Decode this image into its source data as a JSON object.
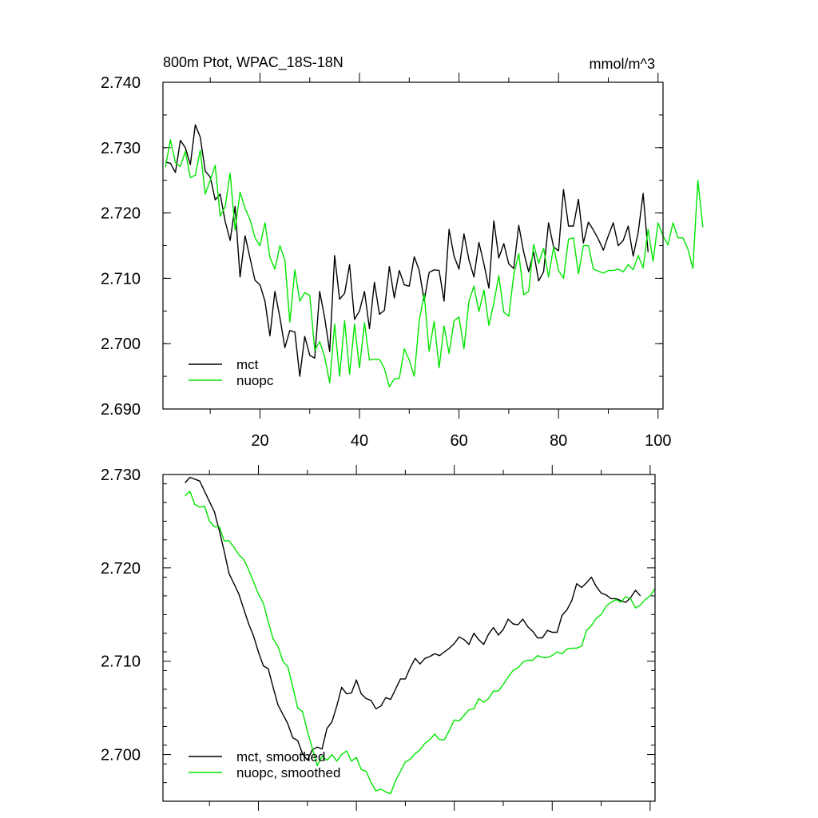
{
  "colors": {
    "mct": "#000000",
    "nuopc": "#00e600",
    "axis": "#000000"
  },
  "chart_data": [
    {
      "type": "line",
      "title": "800m Ptot, WPAC_18S-18N",
      "units_label": "mmol/m^3",
      "xlabel": "",
      "ylabel": "",
      "xlim": [
        0.5,
        101
      ],
      "ylim": [
        2.69,
        2.74
      ],
      "x_ticks": [
        20,
        40,
        60,
        80,
        100
      ],
      "x_tick_labels": [
        "20",
        "40",
        "60",
        "80",
        "100"
      ],
      "y_ticks": [
        2.69,
        2.7,
        2.71,
        2.72,
        2.73,
        2.74
      ],
      "y_tick_labels": [
        "2.690",
        "2.700",
        "2.710",
        "2.720",
        "2.730",
        "2.740"
      ],
      "legend_position": "bottom-left",
      "x_start": 1,
      "series": [
        {
          "name": "mct",
          "color": "#000000",
          "values": [
            2.7278,
            2.7276,
            2.7262,
            2.7311,
            2.73,
            2.7274,
            2.7335,
            2.7316,
            2.7264,
            2.7255,
            2.722,
            2.7229,
            2.7187,
            2.7158,
            2.721,
            2.7102,
            2.7165,
            2.7131,
            2.7097,
            2.709,
            2.7065,
            2.7012,
            2.708,
            2.704,
            2.6994,
            2.702,
            2.7018,
            2.695,
            2.7011,
            2.6982,
            2.6978,
            2.708,
            2.704,
            2.6988,
            2.7135,
            2.7068,
            2.7077,
            2.7121,
            2.7037,
            2.705,
            2.708,
            2.7023,
            2.7094,
            2.7045,
            2.7051,
            2.7118,
            2.707,
            2.7112,
            2.709,
            2.7088,
            2.7133,
            2.7112,
            2.7066,
            2.7109,
            2.7113,
            2.7112,
            2.7065,
            2.7175,
            2.7134,
            2.7114,
            2.7168,
            2.7128,
            2.7102,
            2.7155,
            2.7122,
            2.7085,
            2.7188,
            2.7131,
            2.7153,
            2.7122,
            2.7115,
            2.7181,
            2.714,
            2.711,
            2.714,
            2.7096,
            2.711,
            2.7185,
            2.7148,
            2.7142,
            2.7236,
            2.718,
            2.718,
            2.7221,
            2.7154,
            2.7186,
            2.7174,
            2.716,
            2.7143,
            2.7165,
            2.7185,
            2.715,
            2.7158,
            2.718,
            2.7134,
            2.717,
            2.723,
            2.714
          ]
        },
        {
          "name": "nuopc",
          "color": "#00e600",
          "values": [
            2.727,
            2.7312,
            2.7277,
            2.7271,
            2.7294,
            2.7254,
            2.7258,
            2.7296,
            2.7229,
            2.725,
            2.7273,
            2.7195,
            2.721,
            2.7261,
            2.7174,
            2.7232,
            2.7207,
            2.719,
            2.7162,
            2.715,
            2.7185,
            2.7132,
            2.7114,
            2.715,
            2.7128,
            2.7033,
            2.7113,
            2.7065,
            2.7078,
            2.7074,
            2.699,
            2.7003,
            2.698,
            2.694,
            2.703,
            2.695,
            2.7035,
            2.6953,
            2.703,
            2.6963,
            2.7032,
            2.6975,
            2.6976,
            2.6976,
            2.6962,
            2.6934,
            2.6946,
            2.6947,
            2.6992,
            2.6975,
            2.695,
            2.7035,
            2.7076,
            2.6988,
            2.7034,
            2.6963,
            2.7027,
            2.6985,
            2.7035,
            2.7041,
            2.6992,
            2.7065,
            2.7088,
            2.7049,
            2.7082,
            2.7028,
            2.7062,
            2.7104,
            2.7048,
            2.7042,
            2.7105,
            2.7138,
            2.7075,
            2.708,
            2.7152,
            2.7123,
            2.7146,
            2.7102,
            2.7148,
            2.7112,
            2.71,
            2.716,
            2.7162,
            2.7107,
            2.715,
            2.715,
            2.7114,
            2.7111,
            2.7108,
            2.7112,
            2.7112,
            2.7114,
            2.711,
            2.7121,
            2.7113,
            2.7135,
            2.7116,
            2.7175,
            2.7126,
            2.7185,
            2.7165,
            2.7151,
            2.7185,
            2.7162,
            2.7162,
            2.7145,
            2.7115,
            2.725,
            2.7178
          ]
        }
      ]
    },
    {
      "type": "line",
      "title": "",
      "xlabel": "",
      "ylabel": "",
      "xlim": [
        0.5,
        101
      ],
      "ylim": [
        2.695,
        2.73
      ],
      "x_ticks": [
        20,
        40,
        60,
        80,
        100
      ],
      "x_tick_labels": [],
      "y_ticks": [
        2.7,
        2.71,
        2.72,
        2.73
      ],
      "y_tick_labels": [
        "2.700",
        "2.710",
        "2.720",
        "2.730"
      ],
      "legend_position": "bottom-left",
      "x_start": 5,
      "series": [
        {
          "name": "mct, smoothed",
          "color": "#000000",
          "values": [
            2.7291,
            2.7297,
            2.7295,
            2.7293,
            2.7282,
            2.7271,
            2.726,
            2.724,
            2.7218,
            2.7194,
            2.7183,
            2.7172,
            2.7156,
            2.714,
            2.7127,
            2.711,
            2.7095,
            2.7092,
            2.7072,
            2.7053,
            2.7043,
            2.7033,
            2.7018,
            2.7015,
            2.7001,
            2.6994,
            2.7005,
            2.7008,
            2.7006,
            2.7028,
            2.7035,
            2.7052,
            2.7072,
            2.7065,
            2.7066,
            2.708,
            2.7065,
            2.706,
            2.7058,
            2.7049,
            2.7052,
            2.7061,
            2.7059,
            2.707,
            2.7081,
            2.7081,
            2.7093,
            2.7103,
            2.7097,
            2.7103,
            2.7105,
            2.7108,
            2.7106,
            2.711,
            2.7114,
            2.7119,
            2.7126,
            2.7123,
            2.7118,
            2.713,
            2.7123,
            2.7118,
            2.7129,
            2.7136,
            2.7128,
            2.7134,
            2.7145,
            2.714,
            2.7139,
            2.7145,
            2.7137,
            2.7132,
            2.7125,
            2.7125,
            2.7133,
            2.7131,
            2.7131,
            2.7149,
            2.7155,
            2.7165,
            2.7183,
            2.7179,
            2.7184,
            2.719,
            2.718,
            2.7173,
            2.7171,
            2.7167,
            2.7167,
            2.7165,
            2.7163,
            2.7168,
            2.7176,
            2.717
          ]
        },
        {
          "name": "nuopc, smoothed",
          "color": "#00e600",
          "values": [
            2.7277,
            2.7282,
            2.7268,
            2.7265,
            2.7266,
            2.725,
            2.7244,
            2.7244,
            2.7229,
            2.7229,
            2.7222,
            2.7214,
            2.7209,
            2.7198,
            2.7185,
            2.7172,
            2.7162,
            2.7142,
            2.7124,
            2.7116,
            2.71,
            2.7094,
            2.7073,
            2.705,
            2.7046,
            2.7025,
            2.7007,
            2.6988,
            2.6998,
            2.6994,
            2.7,
            2.6993,
            2.7,
            2.7004,
            2.6993,
            2.6997,
            2.6984,
            2.6982,
            2.697,
            2.6961,
            2.6963,
            2.696,
            2.6958,
            2.6972,
            2.6982,
            2.6992,
            2.6995,
            2.7001,
            2.7005,
            2.7012,
            2.7016,
            2.7022,
            2.7016,
            2.7016,
            2.7026,
            2.7037,
            2.7036,
            2.7042,
            2.7048,
            2.7049,
            2.706,
            2.7056,
            2.706,
            2.7068,
            2.7068,
            2.7075,
            2.7083,
            2.709,
            2.7093,
            2.7099,
            2.7101,
            2.7101,
            2.7106,
            2.7104,
            2.7104,
            2.7106,
            2.711,
            2.7108,
            2.7113,
            2.7114,
            2.7114,
            2.7116,
            2.7133,
            2.7138,
            2.7146,
            2.715,
            2.7159,
            2.7163,
            2.7166,
            2.7163,
            2.7169,
            2.7167,
            2.7157,
            2.716,
            2.7166,
            2.717,
            2.7178
          ]
        }
      ]
    }
  ]
}
